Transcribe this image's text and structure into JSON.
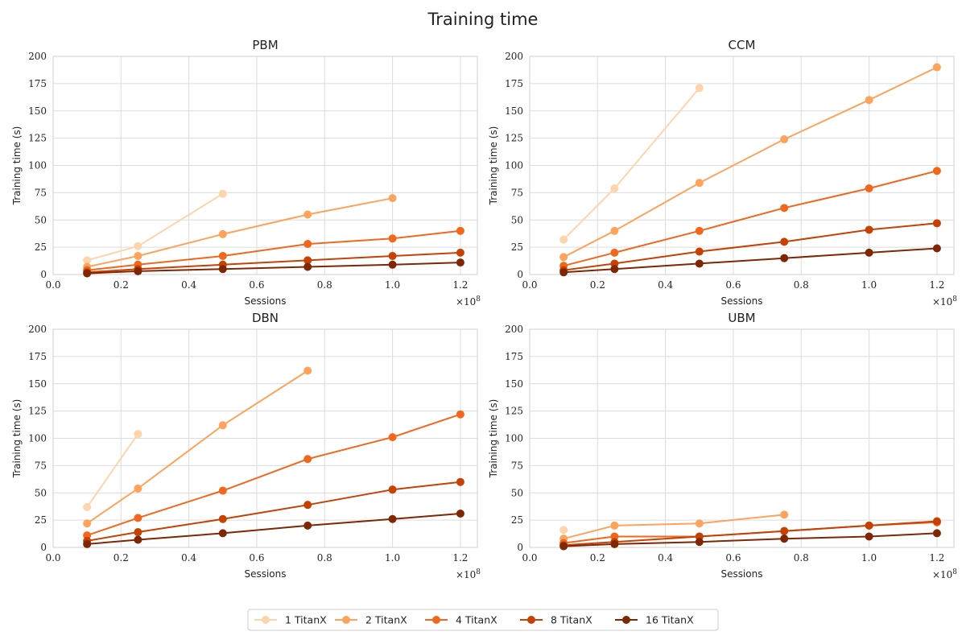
{
  "chart_data": {
    "type": "line",
    "title": "Training time",
    "legend_position": "bottom-center",
    "series_names": [
      "1 TitanX",
      "2 TitanX",
      "4 TitanX",
      "8 TitanX",
      "16 TitanX"
    ],
    "series_colors": [
      "#fdd5ad",
      "#fda35c",
      "#f0671d",
      "#c54104",
      "#7f2704"
    ],
    "x_offset_label": "×10",
    "x_offset_exponent": "8",
    "panels": [
      {
        "title": "PBM",
        "xlabel": "Sessions",
        "ylabel": "Training time (s)",
        "xlim": [
          0,
          1.25
        ],
        "ylim": [
          0,
          200
        ],
        "xticks": [
          0.0,
          0.2,
          0.4,
          0.6,
          0.8,
          1.0,
          1.2
        ],
        "yticks": [
          0,
          25,
          50,
          75,
          100,
          125,
          150,
          175,
          200
        ],
        "series": [
          {
            "name": "1 TitanX",
            "x": [
              0.1,
              0.25,
              0.5
            ],
            "y": [
              13,
              26,
              74
            ]
          },
          {
            "name": "2 TitanX",
            "x": [
              0.1,
              0.25,
              0.5,
              0.75,
              1.0
            ],
            "y": [
              7,
              17,
              37,
              55,
              70
            ]
          },
          {
            "name": "4 TitanX",
            "x": [
              0.1,
              0.25,
              0.5,
              0.75,
              1.0,
              1.2
            ],
            "y": [
              4,
              9,
              17,
              28,
              33,
              40
            ]
          },
          {
            "name": "8 TitanX",
            "x": [
              0.1,
              0.25,
              0.5,
              0.75,
              1.0,
              1.2
            ],
            "y": [
              2,
              5,
              9,
              13,
              17,
              20
            ]
          },
          {
            "name": "16 TitanX",
            "x": [
              0.1,
              0.25,
              0.5,
              0.75,
              1.0,
              1.2
            ],
            "y": [
              1,
              3,
              5,
              7,
              9,
              11
            ]
          }
        ]
      },
      {
        "title": "CCM",
        "xlabel": "Sessions",
        "ylabel": "Training time (s)",
        "xlim": [
          0,
          1.25
        ],
        "ylim": [
          0,
          200
        ],
        "xticks": [
          0.0,
          0.2,
          0.4,
          0.6,
          0.8,
          1.0,
          1.2
        ],
        "yticks": [
          0,
          25,
          50,
          75,
          100,
          125,
          150,
          175,
          200
        ],
        "series": [
          {
            "name": "1 TitanX",
            "x": [
              0.1,
              0.25,
              0.5
            ],
            "y": [
              32,
              79,
              171
            ]
          },
          {
            "name": "2 TitanX",
            "x": [
              0.1,
              0.25,
              0.5,
              0.75,
              1.0,
              1.2
            ],
            "y": [
              16,
              40,
              84,
              124,
              160,
              190
            ]
          },
          {
            "name": "4 TitanX",
            "x": [
              0.1,
              0.25,
              0.5,
              0.75,
              1.0,
              1.2
            ],
            "y": [
              8,
              20,
              40,
              61,
              79,
              95
            ]
          },
          {
            "name": "8 TitanX",
            "x": [
              0.1,
              0.25,
              0.5,
              0.75,
              1.0,
              1.2
            ],
            "y": [
              4,
              10,
              21,
              30,
              41,
              47
            ]
          },
          {
            "name": "16 TitanX",
            "x": [
              0.1,
              0.25,
              0.5,
              0.75,
              1.0,
              1.2
            ],
            "y": [
              2,
              5,
              10,
              15,
              20,
              24
            ]
          }
        ]
      },
      {
        "title": "DBN",
        "xlabel": "Sessions",
        "ylabel": "Training time (s)",
        "xlim": [
          0,
          1.25
        ],
        "ylim": [
          0,
          200
        ],
        "xticks": [
          0.0,
          0.2,
          0.4,
          0.6,
          0.8,
          1.0,
          1.2
        ],
        "yticks": [
          0,
          25,
          50,
          75,
          100,
          125,
          150,
          175,
          200
        ],
        "series": [
          {
            "name": "1 TitanX",
            "x": [
              0.1,
              0.25
            ],
            "y": [
              37,
              104
            ]
          },
          {
            "name": "2 TitanX",
            "x": [
              0.1,
              0.25,
              0.5,
              0.75
            ],
            "y": [
              22,
              54,
              112,
              162
            ]
          },
          {
            "name": "4 TitanX",
            "x": [
              0.1,
              0.25,
              0.5,
              0.75,
              1.0,
              1.2
            ],
            "y": [
              11,
              27,
              52,
              81,
              101,
              122
            ]
          },
          {
            "name": "8 TitanX",
            "x": [
              0.1,
              0.25,
              0.5,
              0.75,
              1.0,
              1.2
            ],
            "y": [
              6,
              14,
              26,
              39,
              53,
              60
            ]
          },
          {
            "name": "16 TitanX",
            "x": [
              0.1,
              0.25,
              0.5,
              0.75,
              1.0,
              1.2
            ],
            "y": [
              3,
              7,
              13,
              20,
              26,
              31
            ]
          }
        ]
      },
      {
        "title": "UBM",
        "xlabel": "Sessions",
        "ylabel": "Training time (s)",
        "xlim": [
          0,
          1.25
        ],
        "ylim": [
          0,
          200
        ],
        "xticks": [
          0.0,
          0.2,
          0.4,
          0.6,
          0.8,
          1.0,
          1.2
        ],
        "yticks": [
          0,
          25,
          50,
          75,
          100,
          125,
          150,
          175,
          200
        ],
        "series": [
          {
            "name": "1 TitanX",
            "x": [
              0.1
            ],
            "y": [
              16
            ]
          },
          {
            "name": "2 TitanX",
            "x": [
              0.1,
              0.25,
              0.5,
              0.75
            ],
            "y": [
              8,
              20,
              22,
              30
            ]
          },
          {
            "name": "4 TitanX",
            "x": [
              0.1,
              0.25,
              0.5,
              0.75,
              1.0,
              1.2
            ],
            "y": [
              4,
              10,
              10,
              15,
              20,
              23
            ]
          },
          {
            "name": "8 TitanX",
            "x": [
              0.1,
              0.25,
              0.5,
              0.75,
              1.0,
              1.2
            ],
            "y": [
              2,
              5,
              10,
              15,
              20,
              24
            ]
          },
          {
            "name": "16 TitanX",
            "x": [
              0.1,
              0.25,
              0.5,
              0.75,
              1.0,
              1.2
            ],
            "y": [
              1,
              3,
              5,
              8,
              10,
              13
            ]
          }
        ]
      }
    ]
  }
}
